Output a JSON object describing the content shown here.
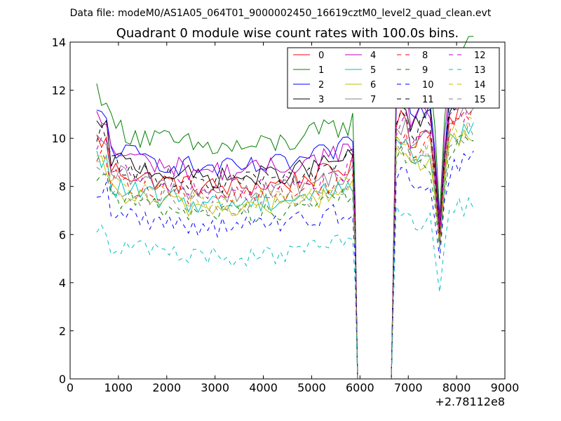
{
  "chart_data": {
    "type": "line",
    "suptitle": "Data file: modeM0/AS1A05_064T01_9000002450_16619cztM0_level2_quad_clean.evt",
    "title": "Quadrant 0 module wise count rates with 100.0s bins.",
    "xlabel": "",
    "ylabel": "",
    "x_offset_label": "+2.78112e8",
    "xlim": [
      0,
      9000
    ],
    "ylim": [
      0,
      14
    ],
    "xticks": [
      "0",
      "1000",
      "2000",
      "3000",
      "4000",
      "5000",
      "6000",
      "7000",
      "8000",
      "9000"
    ],
    "yticks": [
      "0",
      "2",
      "4",
      "6",
      "8",
      "10",
      "12",
      "14"
    ],
    "grid": false,
    "legend_position": "top-right",
    "x_start": 550,
    "x_step": 100,
    "gap_from": 5950,
    "gap_to": 6650,
    "series": [
      {
        "name": "0",
        "color": "#ff0000",
        "dash": "solid",
        "base": 8.3,
        "amp": 0.45,
        "dip": 6.0
      },
      {
        "name": "1",
        "color": "#008000",
        "dash": "solid",
        "base": 10.0,
        "amp": 0.55,
        "dip": 6.8
      },
      {
        "name": "2",
        "color": "#0000ff",
        "dash": "solid",
        "base": 9.1,
        "amp": 0.45,
        "dip": 6.5
      },
      {
        "name": "3",
        "color": "#000000",
        "dash": "solid",
        "base": 8.7,
        "amp": 0.45,
        "dip": 6.2
      },
      {
        "name": "4",
        "color": "#bf00bf",
        "dash": "solid",
        "base": 9.0,
        "amp": 0.45,
        "dip": 6.3
      },
      {
        "name": "5",
        "color": "#00bfbf",
        "dash": "solid",
        "base": 7.6,
        "amp": 0.45,
        "dip": 5.6
      },
      {
        "name": "6",
        "color": "#bfbf00",
        "dash": "solid",
        "base": 7.4,
        "amp": 0.45,
        "dip": 5.5
      },
      {
        "name": "7",
        "color": "#808080",
        "dash": "solid",
        "base": 8.1,
        "amp": 0.45,
        "dip": 5.8
      },
      {
        "name": "8",
        "color": "#ff0000",
        "dash": "dashed",
        "base": 7.9,
        "amp": 0.45,
        "dip": 5.6
      },
      {
        "name": "9",
        "color": "#008000",
        "dash": "dashed",
        "base": 7.2,
        "amp": 0.45,
        "dip": 5.4
      },
      {
        "name": "10",
        "color": "#0000ff",
        "dash": "dashed",
        "base": 6.6,
        "amp": 0.45,
        "dip": 5.0
      },
      {
        "name": "11",
        "color": "#000000",
        "dash": "dashed",
        "base": 8.5,
        "amp": 0.45,
        "dip": 6.0
      },
      {
        "name": "12",
        "color": "#bf00bf",
        "dash": "dashed",
        "base": 8.2,
        "amp": 0.45,
        "dip": 5.9
      },
      {
        "name": "13",
        "color": "#00bfbf",
        "dash": "dashed",
        "base": 5.3,
        "amp": 0.45,
        "dip": 3.6
      },
      {
        "name": "14",
        "color": "#bfbf00",
        "dash": "dashed",
        "base": 7.7,
        "amp": 0.45,
        "dip": 5.6
      },
      {
        "name": "15",
        "color": "#808080",
        "dash": "dashed",
        "base": 7.5,
        "amp": 0.45,
        "dip": 5.5
      }
    ]
  }
}
